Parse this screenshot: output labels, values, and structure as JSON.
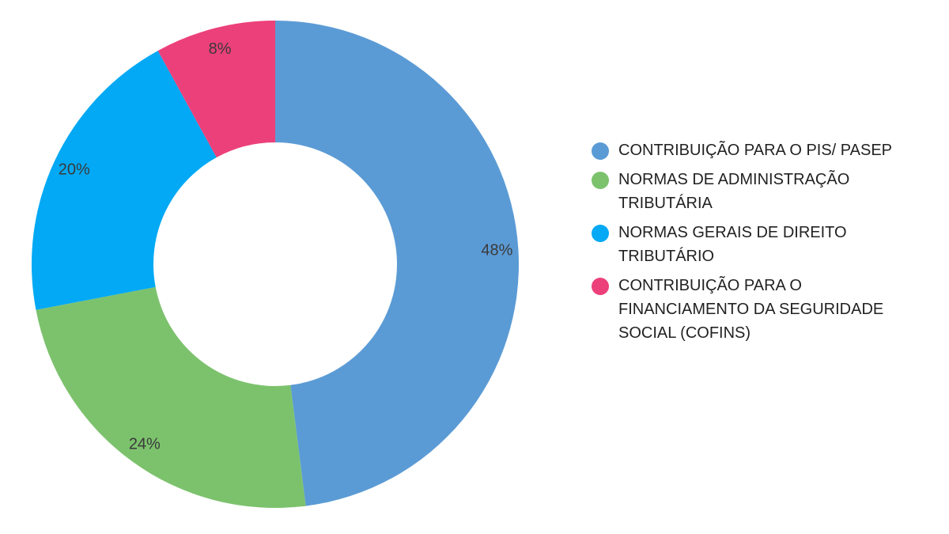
{
  "chart_data": {
    "type": "pie",
    "donut": true,
    "title": "",
    "legend_position": "right",
    "slices": [
      {
        "label": "CONTRIBUIÇÃO PARA O PIS/ PASEP",
        "value": 48,
        "value_label": "48%",
        "color": "#5B9BD5"
      },
      {
        "label": "NORMAS DE ADMINISTRAÇÃO TRIBUTÁRIA",
        "value": 24,
        "value_label": "24%",
        "color": "#7CC26D"
      },
      {
        "label": "NORMAS GERAIS DE DIREITO TRIBUTÁRIO",
        "value": 20,
        "value_label": "20%",
        "color": "#03A9F4"
      },
      {
        "label": "CONTRIBUIÇÃO PARA O FINANCIAMENTO DA SEGURIDADE SOCIAL (COFINS)",
        "value": 8,
        "value_label": "8%",
        "color": "#EC407A"
      }
    ]
  }
}
